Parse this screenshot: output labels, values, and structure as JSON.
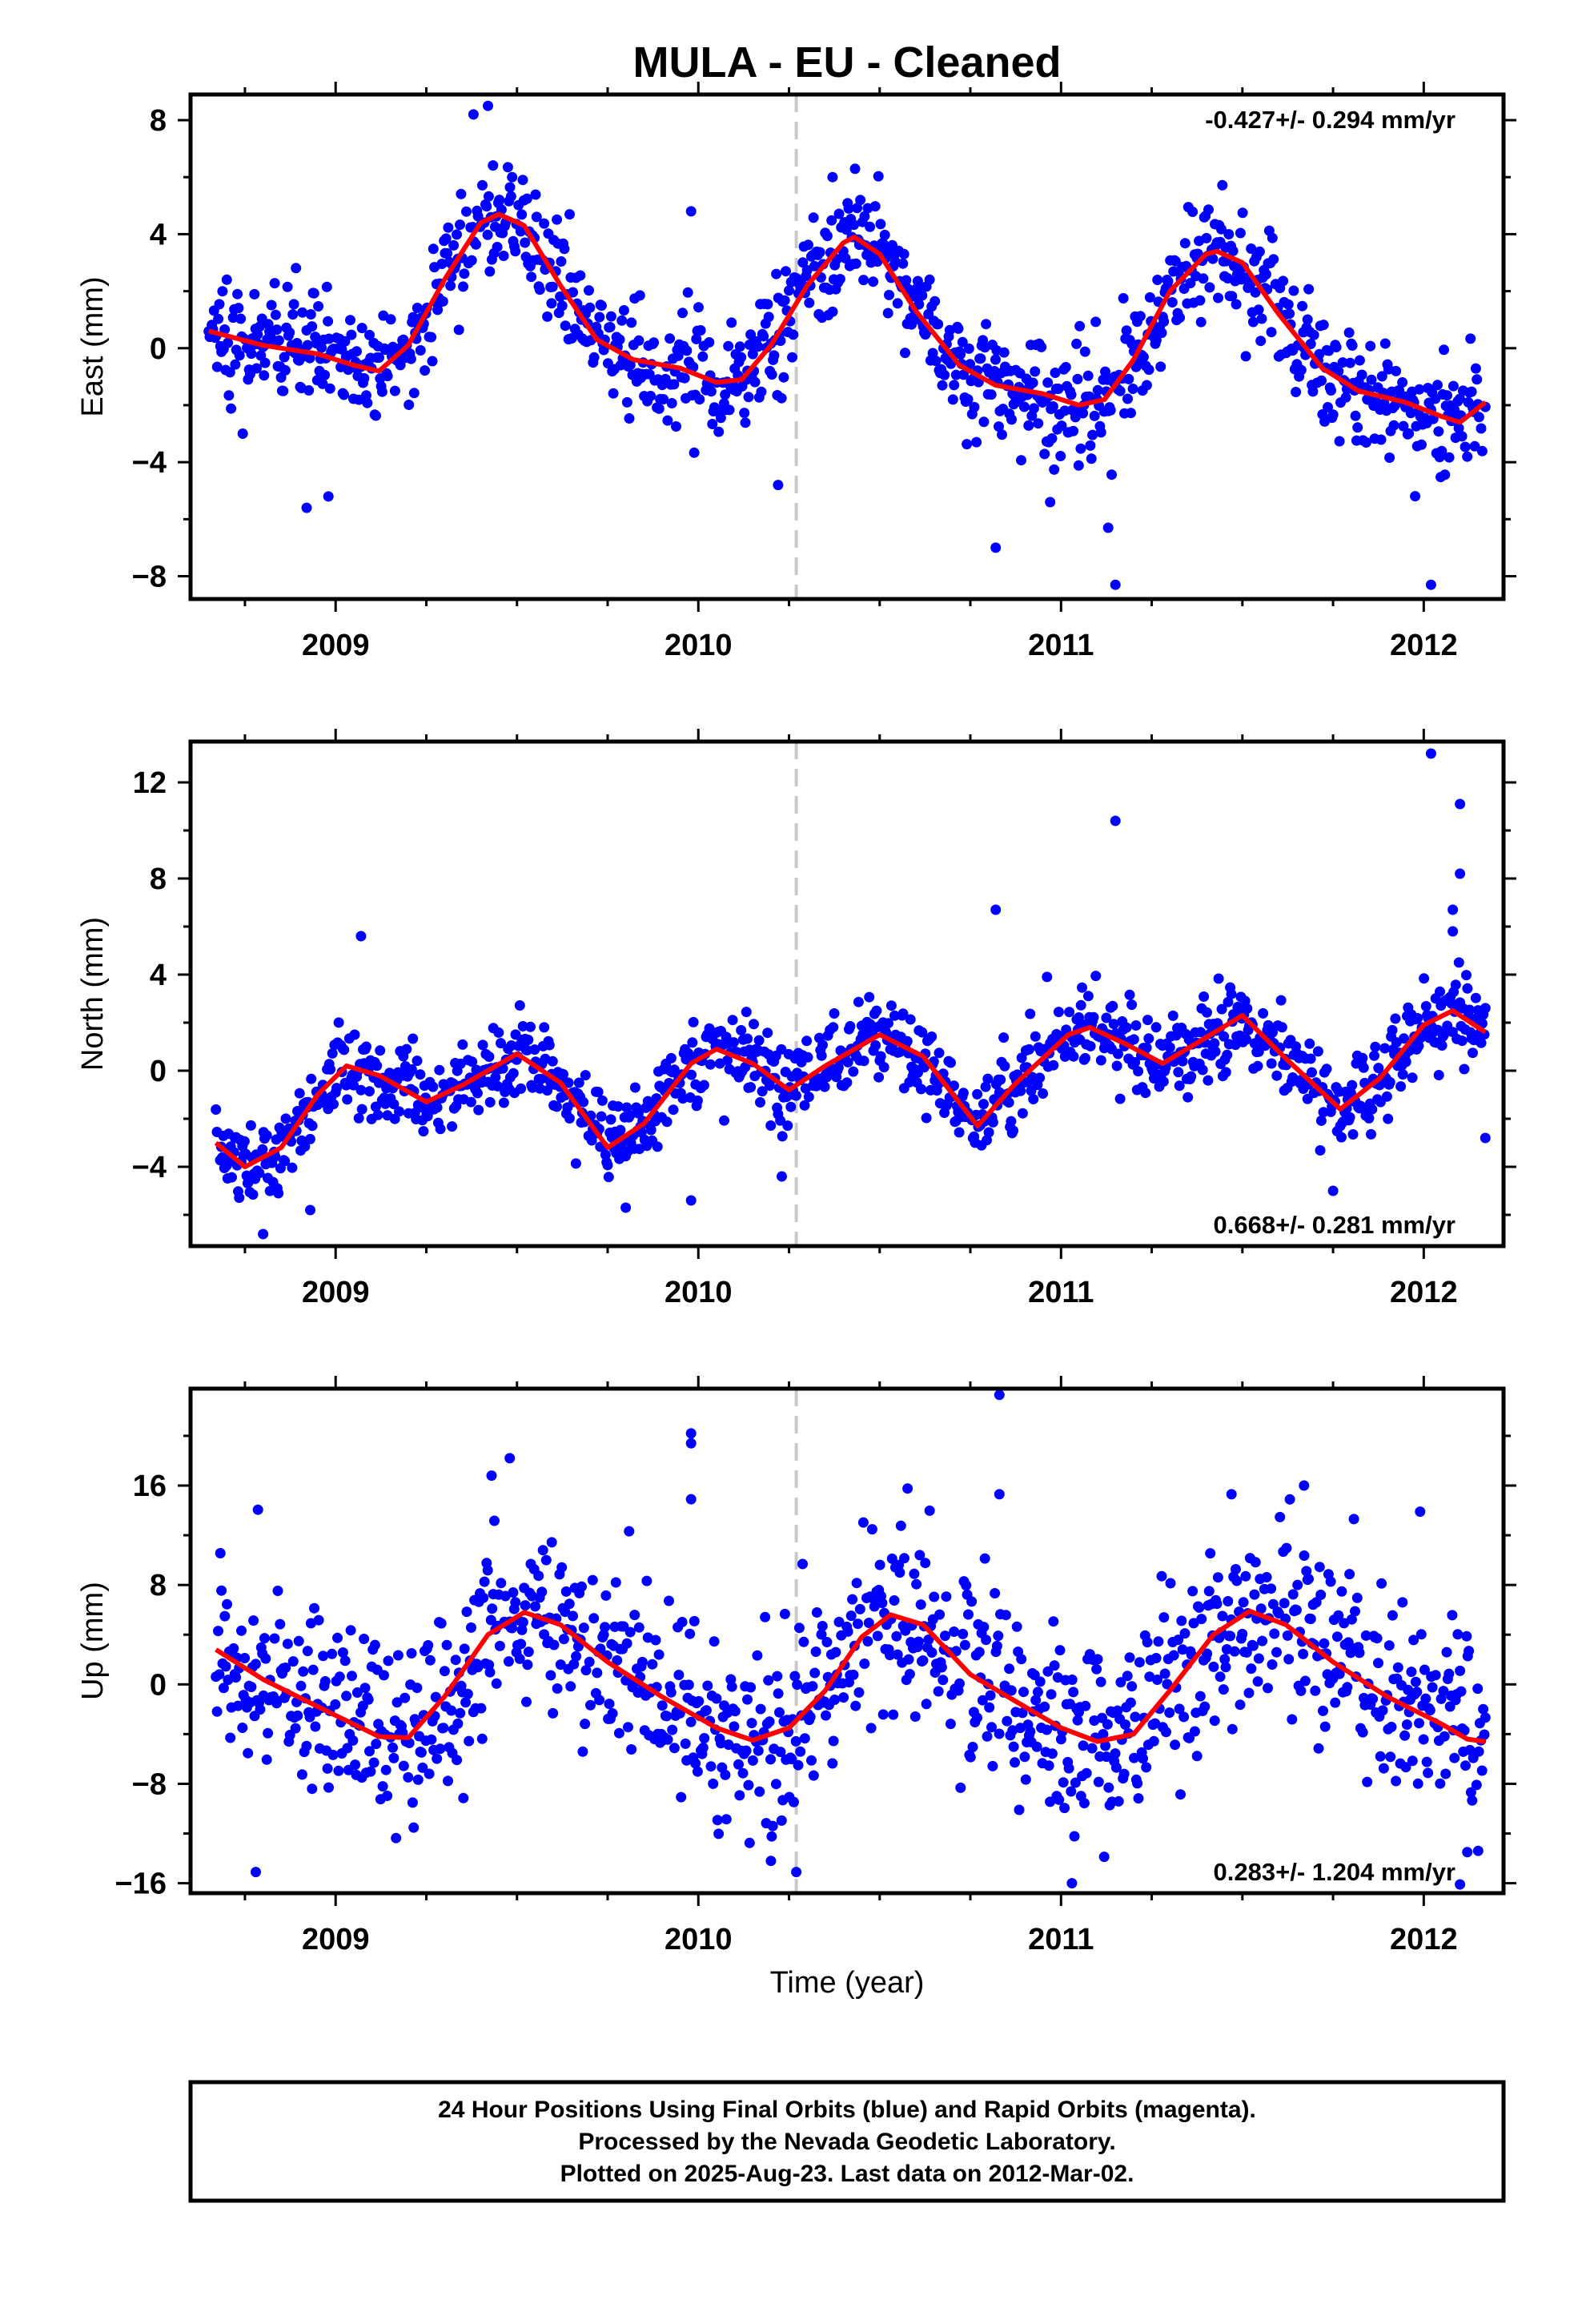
{
  "figure": {
    "title": "MULA  - EU - Cleaned",
    "xlabel": "Time (year)",
    "footer": [
      "24 Hour Positions Using Final Orbits (blue) and Rapid Orbits (magenta).",
      "Processed by the Nevada Geodetic Laboratory.",
      "Plotted on 2025-Aug-23. Last data on 2012-Mar-02."
    ],
    "colors": {
      "points": "#0000ff",
      "fit": "#ff0000",
      "vline": "#c8c8c8",
      "frame": "#000000"
    }
  },
  "chart_data": [
    {
      "type": "scatter",
      "ylabel": "East (mm)",
      "rate_text": "-0.427+/- 0.294 mm/yr",
      "xlim": [
        2008.6,
        2012.22
      ],
      "ylim": [
        -8.8,
        8.9
      ],
      "xticks": [
        2009,
        2010,
        2011,
        2012
      ],
      "yticks": [
        -8,
        -4,
        0,
        4,
        8
      ],
      "vline_x": 2010.27,
      "fit": [
        [
          2008.65,
          0.6
        ],
        [
          2008.8,
          0.1
        ],
        [
          2008.95,
          -0.2
        ],
        [
          2009.05,
          -0.6
        ],
        [
          2009.12,
          -0.8
        ],
        [
          2009.2,
          0.1
        ],
        [
          2009.3,
          2.4
        ],
        [
          2009.4,
          4.4
        ],
        [
          2009.45,
          4.7
        ],
        [
          2009.52,
          4.3
        ],
        [
          2009.62,
          2.2
        ],
        [
          2009.72,
          0.3
        ],
        [
          2009.82,
          -0.4
        ],
        [
          2009.95,
          -0.7
        ],
        [
          2010.05,
          -1.2
        ],
        [
          2010.12,
          -1.1
        ],
        [
          2010.2,
          0.1
        ],
        [
          2010.3,
          2.2
        ],
        [
          2010.4,
          3.7
        ],
        [
          2010.43,
          3.9
        ],
        [
          2010.5,
          3.3
        ],
        [
          2010.6,
          1.3
        ],
        [
          2010.72,
          -0.6
        ],
        [
          2010.82,
          -1.3
        ],
        [
          2010.95,
          -1.6
        ],
        [
          2011.05,
          -2.0
        ],
        [
          2011.12,
          -1.8
        ],
        [
          2011.2,
          -0.4
        ],
        [
          2011.3,
          2.0
        ],
        [
          2011.4,
          3.3
        ],
        [
          2011.43,
          3.4
        ],
        [
          2011.5,
          3.0
        ],
        [
          2011.6,
          1.2
        ],
        [
          2011.72,
          -0.7
        ],
        [
          2011.82,
          -1.5
        ],
        [
          2011.95,
          -1.9
        ],
        [
          2012.05,
          -2.4
        ],
        [
          2012.1,
          -2.6
        ],
        [
          2012.17,
          -1.9
        ]
      ],
      "noise_sd": 1.0,
      "n_points": 1200,
      "outliers": [
        [
          2009.38,
          8.2
        ],
        [
          2009.42,
          8.5
        ],
        [
          2008.92,
          -5.6
        ],
        [
          2008.98,
          -5.2
        ],
        [
          2010.22,
          -4.8
        ],
        [
          2010.97,
          -5.4
        ],
        [
          2011.13,
          -6.3
        ],
        [
          2011.15,
          -8.3
        ],
        [
          2010.82,
          -7.0
        ],
        [
          2012.02,
          -8.3
        ],
        [
          2010.37,
          6.0
        ],
        [
          2009.98,
          4.8
        ]
      ]
    },
    {
      "type": "scatter",
      "ylabel": "North (mm)",
      "rate_text": "0.668+/- 0.281 mm/yr",
      "xlim": [
        2008.6,
        2012.22
      ],
      "ylim": [
        -7.3,
        13.7
      ],
      "xticks": [
        2009,
        2010,
        2011,
        2012
      ],
      "yticks": [
        -4,
        0,
        4,
        8,
        12
      ],
      "vline_x": 2010.27,
      "fit": [
        [
          2008.67,
          -3.0
        ],
        [
          2008.75,
          -4.0
        ],
        [
          2008.85,
          -3.2
        ],
        [
          2008.95,
          -1.0
        ],
        [
          2009.03,
          0.2
        ],
        [
          2009.12,
          -0.2
        ],
        [
          2009.25,
          -1.3
        ],
        [
          2009.35,
          -0.6
        ],
        [
          2009.5,
          0.7
        ],
        [
          2009.62,
          -0.5
        ],
        [
          2009.75,
          -3.2
        ],
        [
          2009.85,
          -2.2
        ],
        [
          2009.98,
          0.3
        ],
        [
          2010.05,
          0.9
        ],
        [
          2010.15,
          0.3
        ],
        [
          2010.25,
          -0.8
        ],
        [
          2010.35,
          0.2
        ],
        [
          2010.5,
          1.5
        ],
        [
          2010.62,
          0.6
        ],
        [
          2010.77,
          -2.3
        ],
        [
          2010.87,
          -0.6
        ],
        [
          2011.02,
          1.5
        ],
        [
          2011.08,
          1.8
        ],
        [
          2011.18,
          1.1
        ],
        [
          2011.28,
          0.3
        ],
        [
          2011.38,
          1.2
        ],
        [
          2011.5,
          2.3
        ],
        [
          2011.62,
          0.5
        ],
        [
          2011.77,
          -1.6
        ],
        [
          2011.88,
          -0.3
        ],
        [
          2012.0,
          1.9
        ],
        [
          2012.08,
          2.5
        ],
        [
          2012.17,
          1.6
        ]
      ],
      "noise_sd": 0.85,
      "n_points": 1200,
      "outliers": [
        [
          2012.02,
          13.2
        ],
        [
          2012.1,
          11.1
        ],
        [
          2012.1,
          8.2
        ],
        [
          2011.15,
          10.4
        ],
        [
          2010.82,
          6.7
        ],
        [
          2012.08,
          6.7
        ],
        [
          2012.08,
          5.8
        ],
        [
          2009.07,
          5.6
        ],
        [
          2008.93,
          -5.8
        ],
        [
          2009.8,
          -5.7
        ],
        [
          2009.98,
          -5.4
        ],
        [
          2010.23,
          -4.4
        ],
        [
          2011.75,
          -5.0
        ],
        [
          2012.17,
          -2.8
        ],
        [
          2008.8,
          -6.8
        ]
      ]
    },
    {
      "type": "scatter",
      "ylabel": "Up (mm)",
      "rate_text": "0.283+/- 1.204 mm/yr",
      "xlim": [
        2008.6,
        2012.22
      ],
      "ylim": [
        -16.8,
        23.8
      ],
      "xticks": [
        2009,
        2010,
        2011,
        2012
      ],
      "yticks": [
        -16,
        -8,
        0,
        8,
        16
      ],
      "vline_x": 2010.27,
      "fit": [
        [
          2008.67,
          2.8
        ],
        [
          2008.8,
          0.4
        ],
        [
          2009.0,
          -2.5
        ],
        [
          2009.12,
          -4.2
        ],
        [
          2009.2,
          -4.3
        ],
        [
          2009.3,
          -1.0
        ],
        [
          2009.42,
          4.0
        ],
        [
          2009.52,
          5.8
        ],
        [
          2009.62,
          4.8
        ],
        [
          2009.75,
          1.8
        ],
        [
          2009.9,
          -1.0
        ],
        [
          2010.05,
          -3.5
        ],
        [
          2010.15,
          -4.5
        ],
        [
          2010.25,
          -3.5
        ],
        [
          2010.35,
          -0.5
        ],
        [
          2010.45,
          3.8
        ],
        [
          2010.53,
          5.6
        ],
        [
          2010.62,
          4.8
        ],
        [
          2010.75,
          0.8
        ],
        [
          2010.9,
          -1.8
        ],
        [
          2011.0,
          -3.5
        ],
        [
          2011.1,
          -4.6
        ],
        [
          2011.2,
          -4.0
        ],
        [
          2011.3,
          -0.5
        ],
        [
          2011.42,
          4.0
        ],
        [
          2011.52,
          5.9
        ],
        [
          2011.62,
          4.8
        ],
        [
          2011.75,
          1.8
        ],
        [
          2011.9,
          -1.0
        ],
        [
          2012.05,
          -3.2
        ],
        [
          2012.12,
          -4.4
        ],
        [
          2012.17,
          -4.6
        ]
      ],
      "noise_sd": 3.8,
      "n_points": 1150,
      "outliers": [
        [
          2010.83,
          23.3
        ],
        [
          2009.98,
          20.2
        ],
        [
          2009.98,
          19.4
        ],
        [
          2009.48,
          18.2
        ],
        [
          2009.43,
          16.8
        ],
        [
          2010.83,
          15.3
        ],
        [
          2011.03,
          -16.0
        ],
        [
          2010.27,
          -15.1
        ],
        [
          2008.78,
          -15.1
        ],
        [
          2010.2,
          -14.2
        ],
        [
          2012.12,
          -13.5
        ],
        [
          2012.15,
          -13.4
        ],
        [
          2011.99,
          13.9
        ],
        [
          2012.1,
          -16.1
        ],
        [
          2009.98,
          14.9
        ],
        [
          2011.47,
          15.3
        ],
        [
          2011.67,
          16.0
        ]
      ]
    }
  ]
}
